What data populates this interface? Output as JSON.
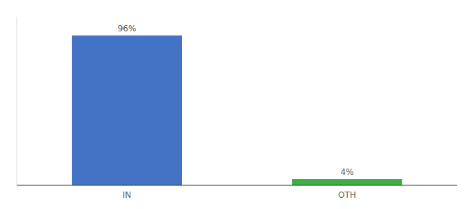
{
  "chart_data": {
    "type": "bar",
    "categories": [
      "IN",
      "OTH"
    ],
    "values": [
      96,
      4
    ],
    "value_labels": [
      "96%",
      "4%"
    ],
    "colors": [
      "#4472c4",
      "#3cb043"
    ],
    "data_labels": true,
    "ylim": [
      0,
      108
    ],
    "grid": false,
    "tick_labels": "x"
  }
}
